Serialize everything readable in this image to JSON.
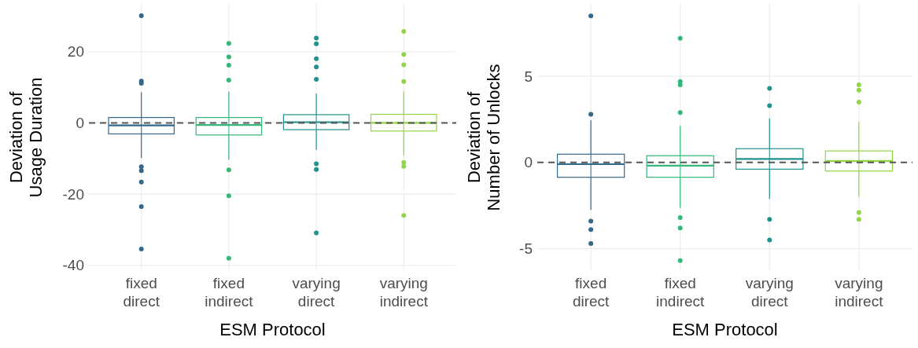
{
  "chart_data": [
    {
      "type": "box",
      "xlabel": "ESM Protocol",
      "ylabel": "Deviation of\nUsage Duration",
      "categories": [
        "fixed direct",
        "fixed indirect",
        "varying direct",
        "varying indirect"
      ],
      "colors": [
        "#31688e",
        "#35b779",
        "#21918c",
        "#8fd744"
      ],
      "boxes": [
        {
          "low": -9.9,
          "q1": -3.1,
          "median": -0.7,
          "q3": 1.5,
          "high": 8.6,
          "outliers": [
            30.1,
            11.7,
            11.1,
            -12.3,
            -13.4,
            -16.6,
            -23.5,
            -35.4
          ]
        },
        {
          "low": -10.4,
          "q1": -3.4,
          "median": -0.6,
          "q3": 1.5,
          "high": 8.8,
          "outliers": [
            22.3,
            18.5,
            16.2,
            12.0,
            -13.2,
            -20.5,
            -38.0
          ]
        },
        {
          "low": -7.6,
          "q1": -1.9,
          "median": 0.2,
          "q3": 2.3,
          "high": 8.2,
          "outliers": [
            23.8,
            22.2,
            18.0,
            15.7,
            12.2,
            -11.5,
            -13.1,
            -30.9
          ]
        },
        {
          "low": -9.2,
          "q1": -2.3,
          "median": 0.0,
          "q3": 2.4,
          "high": 8.8,
          "outliers": [
            25.7,
            19.2,
            16.3,
            11.6,
            -11.1,
            -12.2,
            -26.0
          ]
        }
      ],
      "ylim": [
        -41.6,
        33.4
      ],
      "yticks": [
        -40,
        -20,
        0,
        20
      ],
      "grid": true,
      "ref_lines": [
        {
          "axis": "y",
          "value": 0,
          "color": "#555555",
          "line_style": "dashed"
        }
      ]
    },
    {
      "type": "box",
      "xlabel": "ESM Protocol",
      "ylabel": "Deviation of\nNumber of Unlocks",
      "categories": [
        "fixed direct",
        "fixed indirect",
        "varying direct",
        "varying indirect"
      ],
      "colors": [
        "#31688e",
        "#35b779",
        "#21918c",
        "#8fd744"
      ],
      "boxes": [
        {
          "low": -2.76,
          "q1": -0.86,
          "median": -0.1,
          "q3": 0.48,
          "high": 2.45,
          "outliers": [
            8.5,
            2.8,
            -3.4,
            -3.9,
            -4.7
          ]
        },
        {
          "low": -2.64,
          "q1": -0.86,
          "median": -0.19,
          "q3": 0.39,
          "high": 2.12,
          "outliers": [
            7.2,
            4.7,
            4.5,
            2.9,
            -3.2,
            -3.8,
            -5.7
          ]
        },
        {
          "low": -2.12,
          "q1": -0.39,
          "median": 0.2,
          "q3": 0.8,
          "high": 2.55,
          "outliers": [
            4.3,
            3.3,
            -3.3,
            -4.5
          ]
        },
        {
          "low": -2.0,
          "q1": -0.5,
          "median": 0.09,
          "q3": 0.67,
          "high": 2.35,
          "outliers": [
            4.5,
            4.2,
            3.5,
            -2.9,
            -3.3
          ]
        }
      ],
      "ylim": [
        -6.3,
        9.2
      ],
      "yticks": [
        -5,
        0,
        5
      ],
      "grid": true,
      "ref_lines": [
        {
          "axis": "y",
          "value": 0,
          "color": "#555555",
          "line_style": "dashed"
        }
      ]
    }
  ]
}
